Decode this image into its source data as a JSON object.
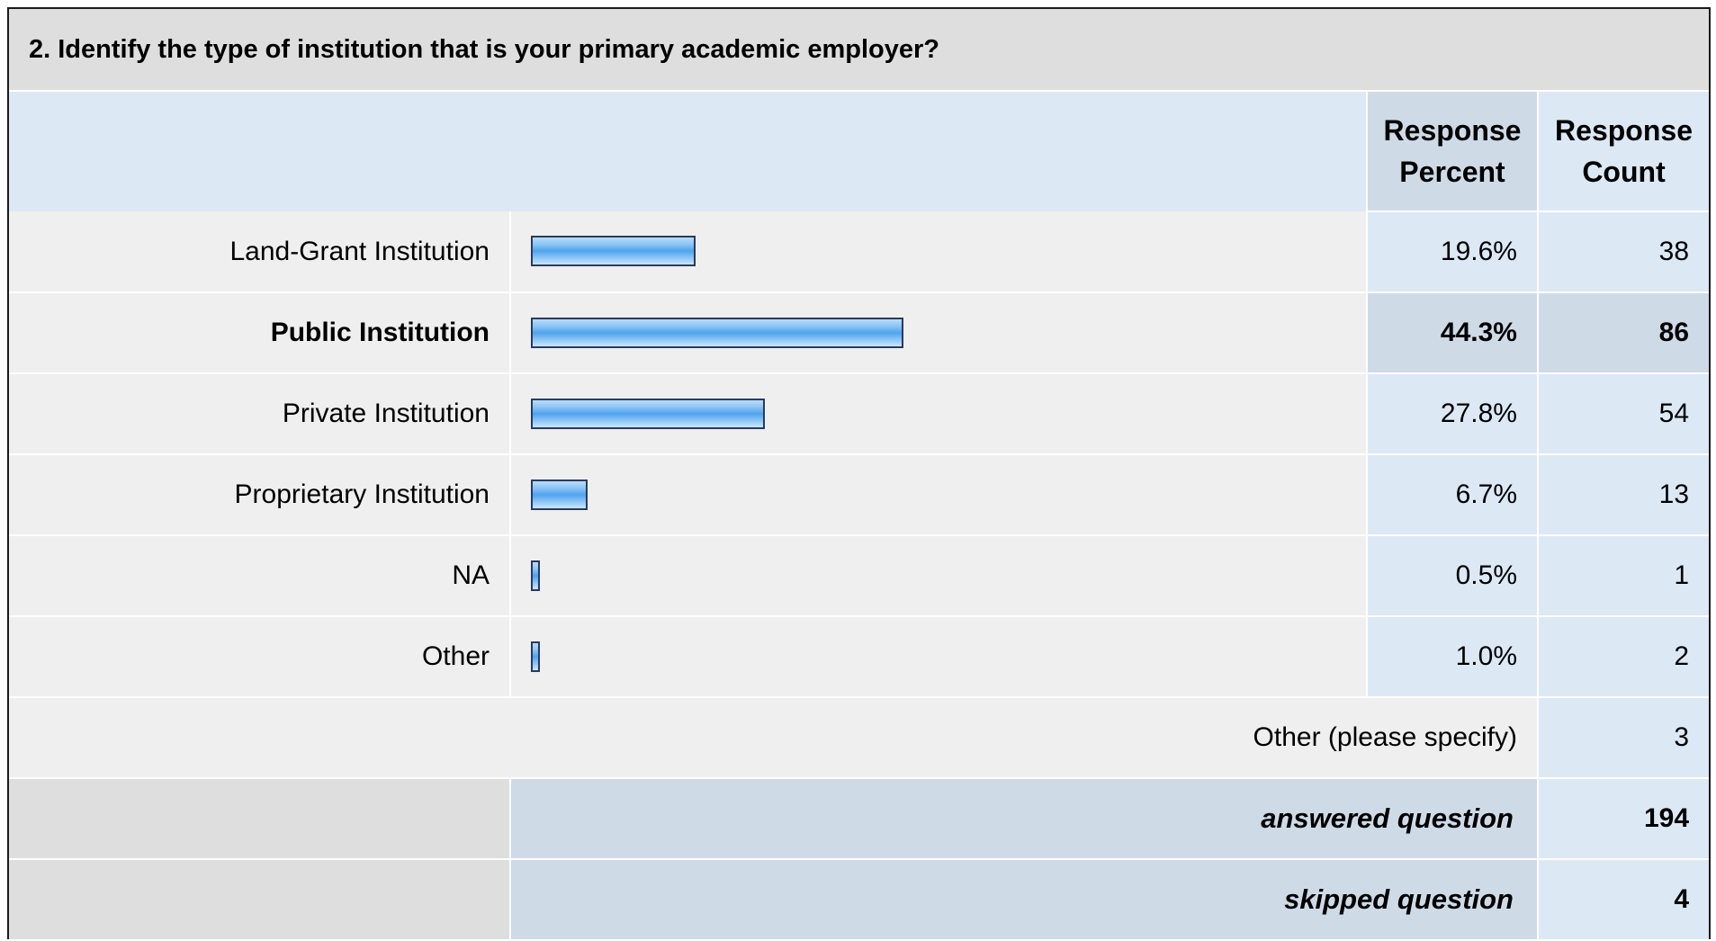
{
  "question_title": "2. Identify the type of institution that is your primary academic employer?",
  "headers": {
    "percent_line1": "Response",
    "percent_line2": "Percent",
    "count_line1": "Response",
    "count_line2": "Count"
  },
  "other_specify": {
    "label": "Other (please specify)",
    "count": "3"
  },
  "answered": {
    "label": "answered question",
    "value": "194"
  },
  "skipped": {
    "label": "skipped question",
    "value": "4"
  },
  "colors": {
    "bar_mid": "#4fa3ee",
    "bar_border": "#2b3a5c",
    "highlight_row": "#cfdae7"
  },
  "chart_data": {
    "type": "bar",
    "orientation": "horizontal",
    "title": "2. Identify the type of institution that is your primary academic employer?",
    "categories": [
      "Land-Grant Institution",
      "Public Institution",
      "Private Institution",
      "Proprietary Institution",
      "NA",
      "Other"
    ],
    "percent_labels": [
      "19.6%",
      "44.3%",
      "27.8%",
      "6.7%",
      "0.5%",
      "1.0%"
    ],
    "percent_values": [
      19.6,
      44.3,
      27.8,
      6.7,
      0.5,
      1.0
    ],
    "counts": [
      "38",
      "86",
      "54",
      "13",
      "1",
      "2"
    ],
    "highlight_index": 1,
    "xlim": [
      0,
      100
    ],
    "grid": false
  }
}
